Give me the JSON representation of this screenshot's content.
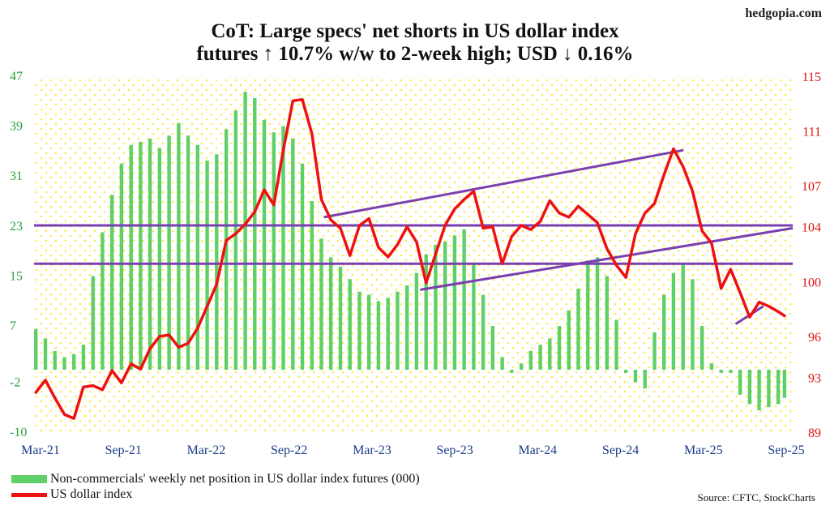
{
  "header": {
    "site": "hedgopia.com",
    "title_line1": "CoT: Large specs' net shorts in US dollar index",
    "title_line2": "futures ↑ 10.7% w/w to 2-week high; USD ↓ 0.16%"
  },
  "legend": {
    "bars": "Non-commercials' weekly net position in US dollar index futures (000)",
    "line": "US dollar index"
  },
  "source": "Source: CFTC, StockCharts",
  "colors": {
    "bars": "#5fd068",
    "line": "#ee1111",
    "trend": "#7a3fb0",
    "left_axis": "#2e9e3e",
    "right_axis": "#e01010",
    "dots": "#ffe94d"
  },
  "chart_data": {
    "type": "bar+line",
    "x_labels": [
      "Mar-21",
      "Sep-21",
      "Mar-22",
      "Sep-22",
      "Mar-23",
      "Sep-23",
      "Mar-24",
      "Sep-24",
      "Mar-25",
      "Sep-25"
    ],
    "left_axis": {
      "ticks": [
        47,
        39,
        31,
        23,
        15,
        7,
        -2,
        -10
      ],
      "ylim": [
        -10,
        47
      ],
      "units": "000 contracts"
    },
    "right_axis": {
      "ticks": [
        115,
        111,
        107,
        104,
        100,
        96,
        93,
        89
      ],
      "ylim": [
        89,
        115
      ]
    },
    "series": [
      {
        "name": "Non-commercials' weekly net position in US dollar index futures (000)",
        "kind": "bar",
        "axis": "left",
        "points": [
          [
            "2021-03-05",
            6.5
          ],
          [
            "2021-03-26",
            5.0
          ],
          [
            "2021-04-16",
            3.0
          ],
          [
            "2021-05-07",
            2.0
          ],
          [
            "2021-05-28",
            2.5
          ],
          [
            "2021-06-18",
            4.0
          ],
          [
            "2021-07-09",
            15.0
          ],
          [
            "2021-07-30",
            22.0
          ],
          [
            "2021-08-20",
            28.0
          ],
          [
            "2021-09-10",
            33.0
          ],
          [
            "2021-10-01",
            36.0
          ],
          [
            "2021-10-22",
            36.5
          ],
          [
            "2021-11-12",
            37.0
          ],
          [
            "2021-12-03",
            35.5
          ],
          [
            "2021-12-24",
            37.5
          ],
          [
            "2022-01-14",
            39.5
          ],
          [
            "2022-02-04",
            37.5
          ],
          [
            "2022-02-25",
            36.0
          ],
          [
            "2022-03-18",
            33.5
          ],
          [
            "2022-04-08",
            34.5
          ],
          [
            "2022-04-29",
            38.5
          ],
          [
            "2022-05-20",
            41.5
          ],
          [
            "2022-06-10",
            44.5
          ],
          [
            "2022-07-01",
            43.5
          ],
          [
            "2022-07-22",
            40.0
          ],
          [
            "2022-08-12",
            38.0
          ],
          [
            "2022-09-02",
            39.0
          ],
          [
            "2022-09-23",
            37.0
          ],
          [
            "2022-10-14",
            33.0
          ],
          [
            "2022-11-04",
            27.0
          ],
          [
            "2022-11-25",
            21.0
          ],
          [
            "2022-12-16",
            18.0
          ],
          [
            "2023-01-06",
            16.5
          ],
          [
            "2023-01-27",
            14.5
          ],
          [
            "2023-02-17",
            12.5
          ],
          [
            "2023-03-10",
            12.0
          ],
          [
            "2023-03-31",
            11.0
          ],
          [
            "2023-04-21",
            11.5
          ],
          [
            "2023-05-12",
            12.5
          ],
          [
            "2023-06-02",
            13.5
          ],
          [
            "2023-06-23",
            15.5
          ],
          [
            "2023-07-14",
            18.5
          ],
          [
            "2023-08-04",
            20.0
          ],
          [
            "2023-08-25",
            20.5
          ],
          [
            "2023-09-15",
            21.5
          ],
          [
            "2023-10-06",
            22.5
          ],
          [
            "2023-10-27",
            17.0
          ],
          [
            "2023-11-17",
            12.0
          ],
          [
            "2023-12-08",
            7.0
          ],
          [
            "2023-12-29",
            2.0
          ],
          [
            "2024-01-19",
            -0.5
          ],
          [
            "2024-02-09",
            1.0
          ],
          [
            "2024-03-01",
            3.0
          ],
          [
            "2024-03-22",
            4.0
          ],
          [
            "2024-04-12",
            5.0
          ],
          [
            "2024-05-03",
            7.0
          ],
          [
            "2024-05-24",
            9.5
          ],
          [
            "2024-06-14",
            13.0
          ],
          [
            "2024-07-05",
            17.5
          ],
          [
            "2024-07-26",
            18.0
          ],
          [
            "2024-08-16",
            15.0
          ],
          [
            "2024-09-06",
            8.0
          ],
          [
            "2024-09-27",
            -0.5
          ],
          [
            "2024-10-18",
            -2.0
          ],
          [
            "2024-11-08",
            -3.0
          ],
          [
            "2024-11-29",
            6.0
          ],
          [
            "2024-12-20",
            12.0
          ],
          [
            "2025-01-10",
            15.5
          ],
          [
            "2025-01-31",
            17.0
          ],
          [
            "2025-02-21",
            14.5
          ],
          [
            "2025-03-14",
            7.0
          ],
          [
            "2025-04-04",
            1.0
          ],
          [
            "2025-04-25",
            -0.5
          ],
          [
            "2025-05-16",
            -0.5
          ],
          [
            "2025-06-06",
            -4.0
          ],
          [
            "2025-06-27",
            -5.5
          ],
          [
            "2025-07-18",
            -6.5
          ],
          [
            "2025-08-08",
            -6.0
          ],
          [
            "2025-08-29",
            -5.5
          ],
          [
            "2025-09-12",
            -4.5
          ]
        ]
      },
      {
        "name": "US dollar index",
        "kind": "line",
        "axis": "right",
        "points": [
          [
            "2021-03-05",
            91.9
          ],
          [
            "2021-03-26",
            92.8
          ],
          [
            "2021-04-16",
            91.5
          ],
          [
            "2021-05-07",
            90.3
          ],
          [
            "2021-05-28",
            90.0
          ],
          [
            "2021-06-18",
            92.3
          ],
          [
            "2021-07-09",
            92.4
          ],
          [
            "2021-07-30",
            92.1
          ],
          [
            "2021-08-20",
            93.5
          ],
          [
            "2021-09-10",
            92.6
          ],
          [
            "2021-10-01",
            94.0
          ],
          [
            "2021-10-22",
            93.6
          ],
          [
            "2021-11-12",
            95.1
          ],
          [
            "2021-12-03",
            96.0
          ],
          [
            "2021-12-24",
            96.1
          ],
          [
            "2022-01-14",
            95.2
          ],
          [
            "2022-02-04",
            95.5
          ],
          [
            "2022-02-25",
            96.6
          ],
          [
            "2022-03-18",
            98.2
          ],
          [
            "2022-04-08",
            99.8
          ],
          [
            "2022-04-29",
            103.0
          ],
          [
            "2022-05-20",
            103.5
          ],
          [
            "2022-06-10",
            104.2
          ],
          [
            "2022-07-01",
            105.1
          ],
          [
            "2022-07-22",
            106.7
          ],
          [
            "2022-08-12",
            105.6
          ],
          [
            "2022-09-02",
            109.6
          ],
          [
            "2022-09-23",
            113.2
          ],
          [
            "2022-10-14",
            113.3
          ],
          [
            "2022-11-04",
            110.8
          ],
          [
            "2022-11-25",
            106.0
          ],
          [
            "2022-12-16",
            104.5
          ],
          [
            "2023-01-06",
            103.9
          ],
          [
            "2023-01-27",
            101.9
          ],
          [
            "2023-02-17",
            104.1
          ],
          [
            "2023-03-10",
            104.6
          ],
          [
            "2023-03-31",
            102.5
          ],
          [
            "2023-04-21",
            101.8
          ],
          [
            "2023-05-12",
            102.7
          ],
          [
            "2023-06-02",
            104.0
          ],
          [
            "2023-06-23",
            102.9
          ],
          [
            "2023-07-14",
            99.9
          ],
          [
            "2023-08-04",
            102.0
          ],
          [
            "2023-08-25",
            104.1
          ],
          [
            "2023-09-15",
            105.3
          ],
          [
            "2023-10-06",
            106.0
          ],
          [
            "2023-10-27",
            106.6
          ],
          [
            "2023-11-17",
            103.9
          ],
          [
            "2023-12-08",
            104.0
          ],
          [
            "2023-12-29",
            101.3
          ],
          [
            "2024-01-19",
            103.3
          ],
          [
            "2024-02-09",
            104.1
          ],
          [
            "2024-03-01",
            103.8
          ],
          [
            "2024-03-22",
            104.4
          ],
          [
            "2024-04-12",
            105.9
          ],
          [
            "2024-05-03",
            105.0
          ],
          [
            "2024-05-24",
            104.7
          ],
          [
            "2024-06-14",
            105.5
          ],
          [
            "2024-07-05",
            104.9
          ],
          [
            "2024-07-26",
            104.3
          ],
          [
            "2024-08-16",
            102.4
          ],
          [
            "2024-09-06",
            101.2
          ],
          [
            "2024-09-27",
            100.3
          ],
          [
            "2024-10-18",
            103.5
          ],
          [
            "2024-11-08",
            105.0
          ],
          [
            "2024-11-29",
            105.7
          ],
          [
            "2024-12-20",
            107.8
          ],
          [
            "2025-01-10",
            109.7
          ],
          [
            "2025-01-31",
            108.4
          ],
          [
            "2025-02-21",
            106.6
          ],
          [
            "2025-03-14",
            103.7
          ],
          [
            "2025-04-04",
            102.8
          ],
          [
            "2025-04-25",
            99.5
          ],
          [
            "2025-05-16",
            100.9
          ],
          [
            "2025-06-06",
            99.2
          ],
          [
            "2025-06-27",
            97.4
          ],
          [
            "2025-07-18",
            98.5
          ],
          [
            "2025-08-08",
            98.2
          ],
          [
            "2025-08-29",
            97.8
          ],
          [
            "2025-09-12",
            97.5
          ]
        ]
      }
    ],
    "trendlines": [
      {
        "axis": "right",
        "from": [
          "2021-03-01",
          104.1
        ],
        "to": [
          "2025-09-30",
          104.1
        ]
      },
      {
        "axis": "right",
        "from": [
          "2021-03-01",
          101.3
        ],
        "to": [
          "2025-09-30",
          101.3
        ]
      },
      {
        "axis": "right",
        "from": [
          "2022-12-01",
          104.7
        ],
        "to": [
          "2025-02-01",
          109.6
        ]
      },
      {
        "axis": "right",
        "from": [
          "2023-07-01",
          99.4
        ],
        "to": [
          "2025-09-30",
          103.9
        ]
      },
      {
        "axis": "right",
        "from": [
          "2025-05-27",
          96.9
        ],
        "to": [
          "2025-07-27",
          98.2
        ]
      }
    ],
    "grid": false,
    "legend_position": "bottom-left"
  }
}
